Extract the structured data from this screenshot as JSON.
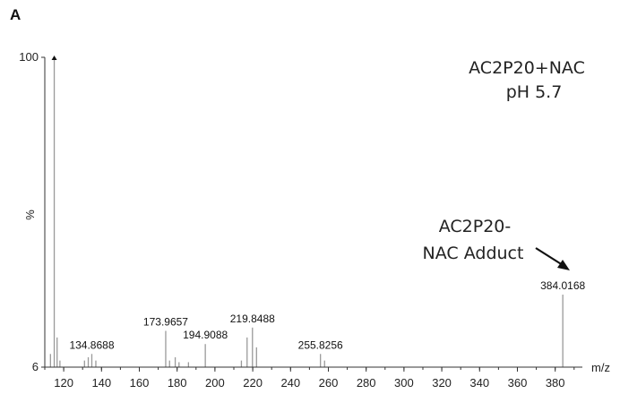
{
  "chart_data": {
    "type": "bar",
    "panel_label": "A",
    "xlabel": "m/z",
    "ylabel": "%",
    "xlim": [
      110,
      392
    ],
    "ylim": [
      6,
      100
    ],
    "x_ticks": [
      120,
      140,
      160,
      180,
      200,
      220,
      240,
      260,
      280,
      300,
      320,
      340,
      360,
      380
    ],
    "y_ticks": [
      6,
      100
    ],
    "annotations": {
      "sample_line1": "AC2P20+NAC",
      "sample_line2": "pH 5.7",
      "adduct_line1": "AC2P20-",
      "adduct_line2": "NAC Adduct"
    },
    "series": [
      {
        "peaks": [
          {
            "x": 113,
            "y": 10
          },
          {
            "x": 115,
            "y": 100
          },
          {
            "x": 116.5,
            "y": 15
          },
          {
            "x": 118,
            "y": 8
          },
          {
            "x": 131,
            "y": 8
          },
          {
            "x": 133,
            "y": 9
          },
          {
            "x": 134.8688,
            "y": 10,
            "label": "134.8688"
          },
          {
            "x": 137,
            "y": 8
          },
          {
            "x": 173.9657,
            "y": 17,
            "label": "173.9657"
          },
          {
            "x": 176,
            "y": 8
          },
          {
            "x": 179,
            "y": 9
          },
          {
            "x": 181,
            "y": 7.5
          },
          {
            "x": 186,
            "y": 7.5
          },
          {
            "x": 194.9088,
            "y": 13,
            "label": "194.9088"
          },
          {
            "x": 214,
            "y": 8
          },
          {
            "x": 217,
            "y": 15
          },
          {
            "x": 219.8488,
            "y": 18,
            "label": "219.8488"
          },
          {
            "x": 222,
            "y": 12
          },
          {
            "x": 255.8256,
            "y": 10,
            "label": "255.8256"
          },
          {
            "x": 258,
            "y": 8
          },
          {
            "x": 384.0168,
            "y": 28,
            "label": "384.0168"
          }
        ]
      }
    ]
  }
}
